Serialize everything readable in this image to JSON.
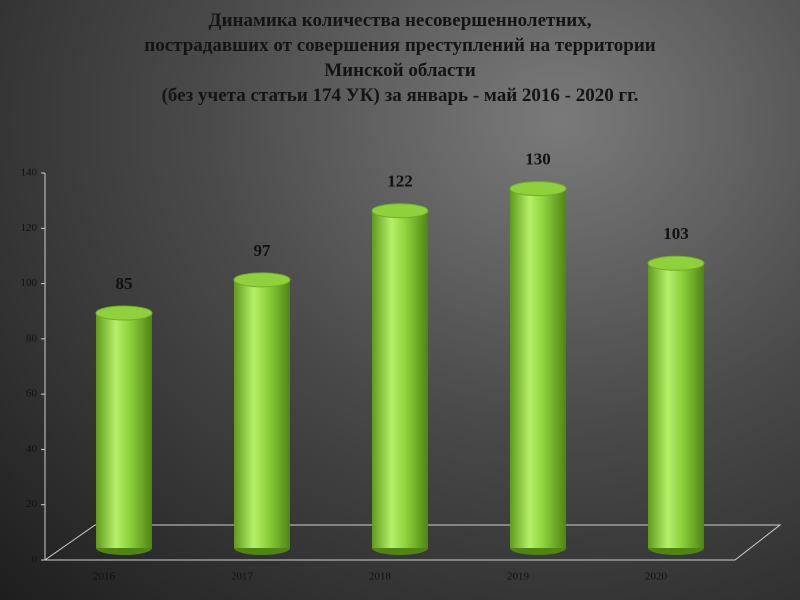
{
  "chart_data": {
    "type": "bar",
    "title": "Динамика количества несовершеннолетних,\nпострадавших от совершения преступлений на территории\nМинской области\n(без учета статьи 174 УК) за январь - май 2016 - 2020 гг.",
    "categories": [
      "2016",
      "2017",
      "2018",
      "2019",
      "2020"
    ],
    "values": [
      85,
      97,
      122,
      130,
      103
    ],
    "color": "#8ed13c",
    "ylim": [
      0,
      140
    ],
    "yticks": [
      0,
      20,
      40,
      60,
      80,
      100,
      120,
      140
    ],
    "grid": false
  }
}
